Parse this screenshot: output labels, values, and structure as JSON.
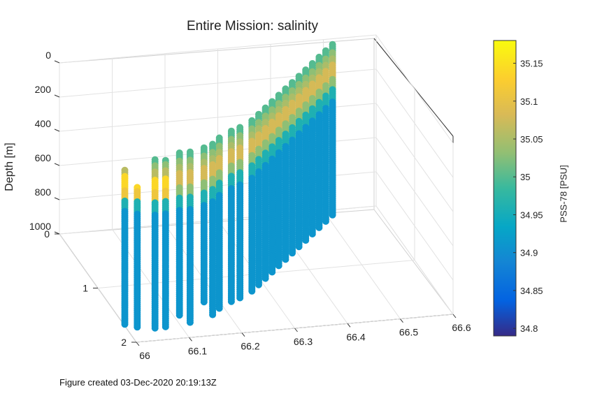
{
  "chart_data": {
    "type": "scatter3d",
    "title": "Entire Mission: salinity",
    "zlabel": "Depth [m]",
    "xlabel": "",
    "ylabel": "",
    "x_ticks": [
      "66",
      "66.1",
      "66.2",
      "66.3",
      "66.4",
      "66.5",
      "66.6"
    ],
    "y_ticks": [
      "0",
      "1",
      "2"
    ],
    "z_ticks": [
      "0",
      "200",
      "400",
      "600",
      "800",
      "1000"
    ],
    "xlim": [
      66,
      66.6
    ],
    "ylim": [
      0,
      2
    ],
    "zlim": [
      0,
      1000
    ],
    "colorbar": {
      "label": "PSS-78 [PSU]",
      "range": [
        34.79,
        35.18
      ],
      "ticks": [
        "35.15",
        "35.1",
        "35.05",
        "35",
        "34.95",
        "34.9",
        "34.85",
        "34.8"
      ],
      "colormap": "parula"
    },
    "profiles": [
      {
        "lon": 66.0,
        "y": 1.7,
        "zmin": 90,
        "zmax": 1000
      },
      {
        "lon": 66.02,
        "y": 1.75,
        "zmin": 180,
        "zmax": 1000
      },
      {
        "lon": 66.05,
        "y": 1.8,
        "zmin": 10,
        "zmax": 1000
      },
      {
        "lon": 66.07,
        "y": 1.8,
        "zmin": 20,
        "zmax": 1000
      },
      {
        "lon": 66.1,
        "y": 1.75,
        "zmin": 0,
        "zmax": 950
      },
      {
        "lon": 66.12,
        "y": 1.75,
        "zmin": 0,
        "zmax": 1000
      },
      {
        "lon": 66.15,
        "y": 1.7,
        "zmin": 0,
        "zmax": 900
      },
      {
        "lon": 66.17,
        "y": 1.65,
        "zmin": 0,
        "zmax": 1000
      },
      {
        "lon": 66.19,
        "y": 1.55,
        "zmin": 0,
        "zmax": 1000
      },
      {
        "lon": 66.22,
        "y": 1.45,
        "zmin": 0,
        "zmax": 1000
      },
      {
        "lon": 66.24,
        "y": 1.4,
        "zmin": 0,
        "zmax": 1000
      },
      {
        "lon": 66.27,
        "y": 1.3,
        "zmin": 0,
        "zmax": 1000
      },
      {
        "lon": 66.29,
        "y": 1.2,
        "zmin": 0,
        "zmax": 1000
      },
      {
        "lon": 66.31,
        "y": 1.1,
        "zmin": 0,
        "zmax": 1000
      },
      {
        "lon": 66.33,
        "y": 1.0,
        "zmin": 0,
        "zmax": 1000
      },
      {
        "lon": 66.35,
        "y": 0.9,
        "zmin": 0,
        "zmax": 1000
      },
      {
        "lon": 66.37,
        "y": 0.8,
        "zmin": 0,
        "zmax": 1000
      },
      {
        "lon": 66.39,
        "y": 0.7,
        "zmin": 0,
        "zmax": 1000
      },
      {
        "lon": 66.41,
        "y": 0.6,
        "zmin": 0,
        "zmax": 1000
      },
      {
        "lon": 66.43,
        "y": 0.5,
        "zmin": 0,
        "zmax": 1000
      },
      {
        "lon": 66.45,
        "y": 0.4,
        "zmin": 0,
        "zmax": 1000
      },
      {
        "lon": 66.47,
        "y": 0.3,
        "zmin": 0,
        "zmax": 1000
      },
      {
        "lon": 66.49,
        "y": 0.2,
        "zmin": 0,
        "zmax": 1000
      },
      {
        "lon": 66.51,
        "y": 0.1,
        "zmin": 0,
        "zmax": 1000
      }
    ]
  },
  "footer": "Figure created 03-Dec-2020 20:19:13Z"
}
